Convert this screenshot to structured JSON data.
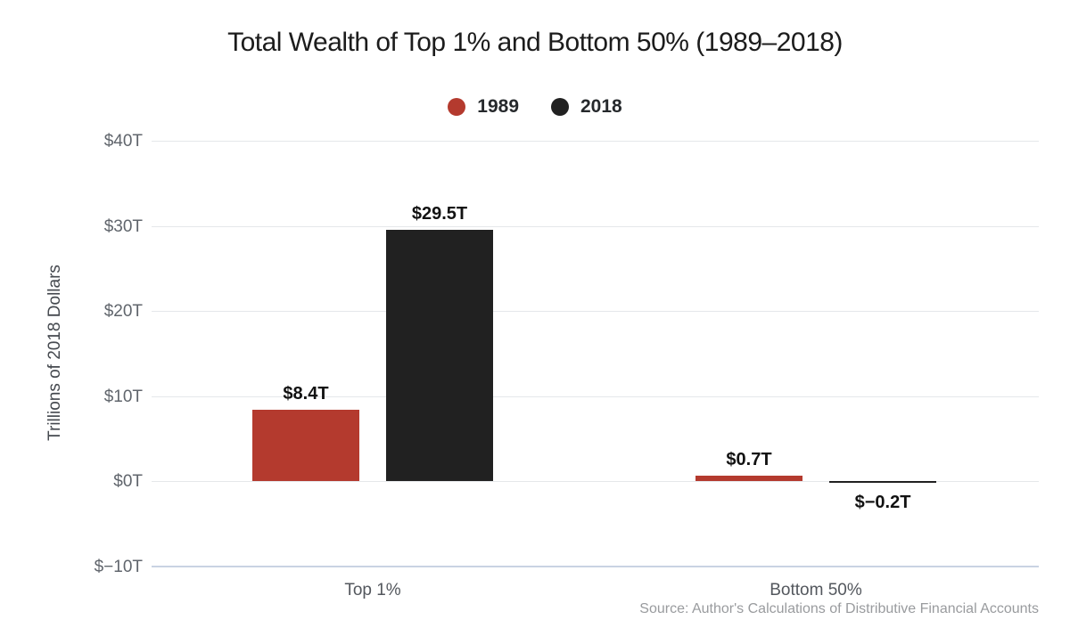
{
  "title": "Total Wealth of Top 1% and Bottom 50% (1989–2018)",
  "legend": [
    {
      "label": "1989",
      "color": "#b43a2e"
    },
    {
      "label": "2018",
      "color": "#212121"
    }
  ],
  "y_axis_title": "Trillions of 2018 Dollars",
  "source": "Source: Author's Calculations of Distributive Financial Accounts",
  "colors": {
    "series_1989": "#b43a2e",
    "series_2018": "#212121",
    "gridline": "#e5e7ea",
    "axis_line": "#c9d3e3"
  },
  "chart_data": {
    "type": "bar",
    "title": "Total Wealth of Top 1% and Bottom 50% (1989–2018)",
    "categories": [
      "Top 1%",
      "Bottom 50%"
    ],
    "series": [
      {
        "name": "1989",
        "color": "#b43a2e",
        "values": [
          8.4,
          0.7
        ],
        "value_labels": [
          "$8.4T",
          "$0.7T"
        ]
      },
      {
        "name": "2018",
        "color": "#212121",
        "values": [
          29.5,
          -0.2
        ],
        "value_labels": [
          "$29.5T",
          "$−0.2T"
        ]
      }
    ],
    "xlabel": "",
    "ylabel": "Trillions of 2018 Dollars",
    "ylim": [
      -10,
      40
    ],
    "yticks": [
      {
        "value": 40,
        "label": "$40T"
      },
      {
        "value": 30,
        "label": "$30T"
      },
      {
        "value": 20,
        "label": "$20T"
      },
      {
        "value": 10,
        "label": "$10T"
      },
      {
        "value": 0,
        "label": "$0T"
      },
      {
        "value": -10,
        "label": "$−10T"
      }
    ],
    "grid": true,
    "legend_position": "top-center",
    "source_note": "Source: Author's Calculations of Distributive Financial Accounts"
  }
}
